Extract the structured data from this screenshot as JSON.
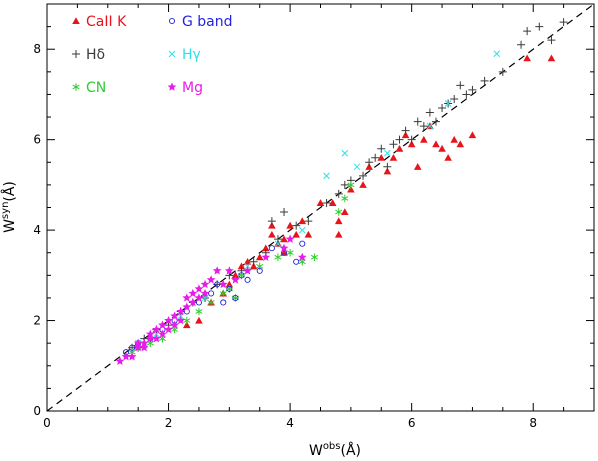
{
  "chart_data": {
    "type": "scatter",
    "title": "",
    "xlabel": {
      "base": "W",
      "sup": "obs",
      "unit": "(Å)"
    },
    "ylabel": {
      "base": "W",
      "sup": "syn",
      "unit": "(Å)"
    },
    "xlim": [
      0,
      9
    ],
    "ylim": [
      0,
      9
    ],
    "xticks": [
      "0",
      "2",
      "4",
      "6",
      "8"
    ],
    "yticks": [
      "0",
      "2",
      "4",
      "6",
      "8"
    ],
    "grid": false,
    "legend_position": "top-left",
    "reference_line": "y = x (dashed)",
    "series": [
      {
        "name": "CaII K",
        "marker": "filled-triangle",
        "color": "#e8141c",
        "points": [
          [
            2.3,
            1.9
          ],
          [
            2.5,
            2.0
          ],
          [
            2.7,
            2.4
          ],
          [
            2.9,
            2.6
          ],
          [
            3.0,
            2.8
          ],
          [
            3.1,
            3.0
          ],
          [
            3.2,
            3.2
          ],
          [
            3.3,
            3.3
          ],
          [
            3.4,
            3.2
          ],
          [
            3.5,
            3.4
          ],
          [
            3.6,
            3.6
          ],
          [
            3.7,
            3.9
          ],
          [
            3.8,
            3.7
          ],
          [
            3.9,
            3.8
          ],
          [
            4.0,
            4.1
          ],
          [
            3.7,
            4.1
          ],
          [
            3.9,
            3.5
          ],
          [
            4.1,
            3.9
          ],
          [
            4.2,
            4.2
          ],
          [
            4.3,
            3.9
          ],
          [
            4.5,
            4.6
          ],
          [
            4.7,
            4.6
          ],
          [
            4.8,
            4.2
          ],
          [
            4.8,
            3.9
          ],
          [
            4.9,
            4.4
          ],
          [
            5.0,
            4.9
          ],
          [
            5.2,
            5.0
          ],
          [
            5.3,
            5.4
          ],
          [
            5.5,
            5.6
          ],
          [
            5.6,
            5.3
          ],
          [
            5.7,
            5.6
          ],
          [
            5.8,
            5.8
          ],
          [
            5.9,
            6.1
          ],
          [
            6.0,
            5.9
          ],
          [
            6.1,
            5.4
          ],
          [
            6.2,
            6.0
          ],
          [
            6.3,
            6.3
          ],
          [
            6.4,
            5.9
          ],
          [
            6.5,
            5.8
          ],
          [
            6.6,
            5.6
          ],
          [
            6.7,
            6.0
          ],
          [
            6.8,
            5.9
          ],
          [
            7.0,
            6.1
          ],
          [
            7.9,
            7.8
          ],
          [
            8.3,
            7.8
          ]
        ]
      },
      {
        "name": "Hδ",
        "marker": "plus",
        "color": "#3a3a3a",
        "points": [
          [
            1.4,
            1.4
          ],
          [
            1.5,
            1.4
          ],
          [
            1.6,
            1.6
          ],
          [
            1.8,
            1.8
          ],
          [
            2.0,
            1.9
          ],
          [
            2.2,
            2.2
          ],
          [
            2.4,
            2.4
          ],
          [
            2.6,
            2.5
          ],
          [
            2.8,
            2.8
          ],
          [
            3.0,
            3.0
          ],
          [
            3.2,
            3.1
          ],
          [
            3.4,
            3.3
          ],
          [
            3.6,
            3.5
          ],
          [
            3.7,
            4.2
          ],
          [
            3.8,
            3.8
          ],
          [
            3.9,
            4.4
          ],
          [
            4.1,
            4.1
          ],
          [
            4.3,
            4.2
          ],
          [
            4.6,
            4.6
          ],
          [
            4.8,
            4.8
          ],
          [
            4.9,
            5.0
          ],
          [
            5.0,
            5.1
          ],
          [
            5.2,
            5.2
          ],
          [
            5.3,
            5.5
          ],
          [
            5.4,
            5.6
          ],
          [
            5.5,
            5.8
          ],
          [
            5.6,
            5.4
          ],
          [
            5.7,
            5.9
          ],
          [
            5.8,
            6.0
          ],
          [
            5.9,
            6.2
          ],
          [
            6.0,
            6.0
          ],
          [
            6.1,
            6.4
          ],
          [
            6.2,
            6.3
          ],
          [
            6.3,
            6.6
          ],
          [
            6.4,
            6.4
          ],
          [
            6.5,
            6.7
          ],
          [
            6.6,
            6.8
          ],
          [
            6.7,
            6.9
          ],
          [
            6.8,
            7.2
          ],
          [
            6.9,
            7.0
          ],
          [
            7.0,
            7.1
          ],
          [
            7.2,
            7.3
          ],
          [
            7.5,
            7.5
          ],
          [
            7.8,
            8.1
          ],
          [
            7.9,
            8.4
          ],
          [
            8.1,
            8.5
          ],
          [
            8.3,
            8.2
          ],
          [
            8.5,
            8.6
          ]
        ]
      },
      {
        "name": "CN",
        "marker": "asterisk",
        "color": "#2fcc2f",
        "points": [
          [
            1.4,
            1.3
          ],
          [
            1.5,
            1.4
          ],
          [
            1.7,
            1.5
          ],
          [
            1.9,
            1.6
          ],
          [
            2.1,
            1.8
          ],
          [
            2.3,
            2.0
          ],
          [
            2.5,
            2.2
          ],
          [
            2.7,
            2.4
          ],
          [
            2.9,
            2.6
          ],
          [
            3.0,
            2.7
          ],
          [
            3.1,
            2.5
          ],
          [
            3.2,
            3.0
          ],
          [
            3.5,
            3.2
          ],
          [
            3.8,
            3.4
          ],
          [
            4.0,
            3.5
          ],
          [
            4.2,
            3.3
          ],
          [
            4.4,
            3.4
          ],
          [
            4.8,
            4.4
          ],
          [
            4.9,
            4.7
          ],
          [
            5.0,
            5.0
          ]
        ]
      },
      {
        "name": "G band",
        "marker": "open-circle",
        "color": "#2323e0",
        "points": [
          [
            1.3,
            1.3
          ],
          [
            1.4,
            1.4
          ],
          [
            1.5,
            1.5
          ],
          [
            1.7,
            1.6
          ],
          [
            1.9,
            1.8
          ],
          [
            2.1,
            2.0
          ],
          [
            2.3,
            2.2
          ],
          [
            2.5,
            2.4
          ],
          [
            2.7,
            2.6
          ],
          [
            2.8,
            2.8
          ],
          [
            2.9,
            2.4
          ],
          [
            3.0,
            2.7
          ],
          [
            3.1,
            2.5
          ],
          [
            3.2,
            3.0
          ],
          [
            3.3,
            2.9
          ],
          [
            3.5,
            3.1
          ],
          [
            3.7,
            3.6
          ],
          [
            3.9,
            3.5
          ],
          [
            4.1,
            3.3
          ],
          [
            4.2,
            3.7
          ]
        ]
      },
      {
        "name": "Hγ",
        "marker": "cross",
        "color": "#2ee0e8",
        "points": [
          [
            1.5,
            1.5
          ],
          [
            1.8,
            1.7
          ],
          [
            2.2,
            2.1
          ],
          [
            2.6,
            2.5
          ],
          [
            3.3,
            3.2
          ],
          [
            3.8,
            3.7
          ],
          [
            4.2,
            4.0
          ],
          [
            4.6,
            5.2
          ],
          [
            4.9,
            5.7
          ],
          [
            5.1,
            5.4
          ],
          [
            5.6,
            5.7
          ],
          [
            6.3,
            6.3
          ],
          [
            6.6,
            6.8
          ],
          [
            7.4,
            7.9
          ]
        ]
      },
      {
        "name": "Mg",
        "marker": "filled-star",
        "color": "#e81ce8",
        "points": [
          [
            1.2,
            1.1
          ],
          [
            1.3,
            1.2
          ],
          [
            1.4,
            1.2
          ],
          [
            1.5,
            1.4
          ],
          [
            1.5,
            1.5
          ],
          [
            1.6,
            1.5
          ],
          [
            1.6,
            1.4
          ],
          [
            1.7,
            1.6
          ],
          [
            1.7,
            1.7
          ],
          [
            1.8,
            1.6
          ],
          [
            1.8,
            1.8
          ],
          [
            1.9,
            1.9
          ],
          [
            1.9,
            1.7
          ],
          [
            2.0,
            2.0
          ],
          [
            2.0,
            1.8
          ],
          [
            2.1,
            2.1
          ],
          [
            2.1,
            1.9
          ],
          [
            2.2,
            2.2
          ],
          [
            2.2,
            2.0
          ],
          [
            2.3,
            2.3
          ],
          [
            2.3,
            2.5
          ],
          [
            2.4,
            2.4
          ],
          [
            2.4,
            2.6
          ],
          [
            2.5,
            2.5
          ],
          [
            2.5,
            2.7
          ],
          [
            2.6,
            2.6
          ],
          [
            2.6,
            2.8
          ],
          [
            2.7,
            2.9
          ],
          [
            2.8,
            3.1
          ],
          [
            2.9,
            2.8
          ],
          [
            3.0,
            3.1
          ],
          [
            3.1,
            2.9
          ],
          [
            3.3,
            3.1
          ],
          [
            3.6,
            3.4
          ],
          [
            3.9,
            3.6
          ],
          [
            4.0,
            3.8
          ],
          [
            4.2,
            3.4
          ]
        ]
      }
    ]
  }
}
